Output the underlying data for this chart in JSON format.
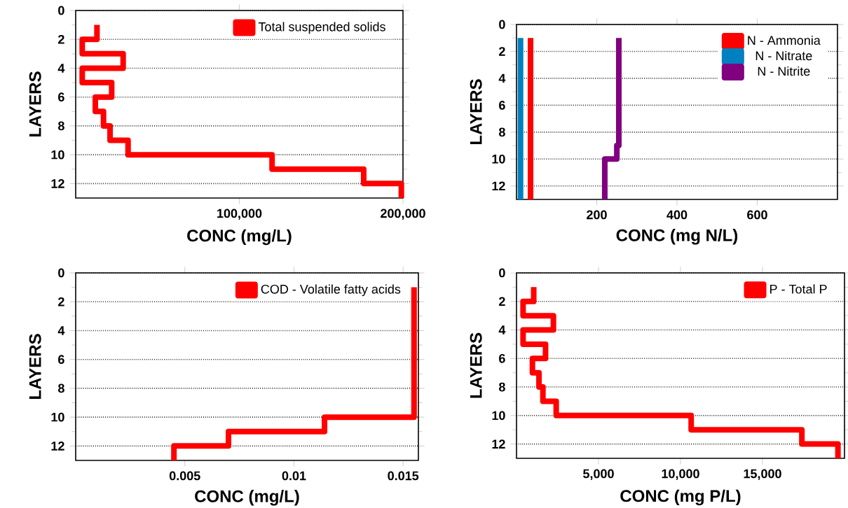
{
  "chart_data": [
    {
      "type": "line",
      "xlabel": "CONC (mg/L)",
      "ylabel": "LAYERS",
      "xlim": [
        0,
        200000
      ],
      "ylim": [
        13,
        0
      ],
      "xticks": [
        {
          "value": 100000,
          "label": "100,000"
        },
        {
          "value": 200000,
          "label": "200,000"
        }
      ],
      "yticks": [
        0,
        2,
        4,
        6,
        8,
        10,
        12
      ],
      "grid": "y",
      "legend": "top right",
      "marker": "none",
      "line_style": "solid",
      "series": [
        {
          "name": "Total suspended solids",
          "color": "#ff0000",
          "x": [
            13000,
            13000,
            4000,
            4000,
            29000,
            29000,
            4000,
            4000,
            22000,
            22000,
            12000,
            12000,
            17000,
            17000,
            21000,
            21000,
            32000,
            32000,
            120000,
            120000,
            176000,
            176000,
            199000,
            199000
          ],
          "values": [
            1,
            2,
            2,
            3,
            3,
            4,
            4,
            5,
            5,
            6,
            6,
            7,
            7,
            8,
            8,
            9,
            9,
            10,
            10,
            11,
            11,
            12,
            12,
            13
          ]
        }
      ]
    },
    {
      "type": "line",
      "xlabel": "CONC (mg N/L)",
      "ylabel": "LAYERS",
      "xlim": [
        0,
        800
      ],
      "ylim": [
        13,
        0
      ],
      "xticks": [
        200,
        400,
        600
      ],
      "yticks": [
        0,
        2,
        4,
        6,
        8,
        10,
        12
      ],
      "grid": "y",
      "legend": "top right",
      "marker": "none",
      "line_style": "solid",
      "series": [
        {
          "name": "N - Ammonia",
          "color": "#ff0000",
          "x": [
            35,
            35
          ],
          "values": [
            1,
            13
          ]
        },
        {
          "name": "N - Nitrate",
          "color": "#0080c0",
          "x": [
            10,
            10
          ],
          "values": [
            1,
            13
          ]
        },
        {
          "name": "N - Nitrite",
          "color": "#800080",
          "x": [
            255,
            255,
            250,
            250,
            220,
            220
          ],
          "values": [
            1,
            9,
            9,
            10,
            10,
            13
          ]
        }
      ]
    },
    {
      "type": "line",
      "xlabel": "CONC (mg/L)",
      "ylabel": "LAYERS",
      "xlim": [
        0,
        0.0157
      ],
      "ylim": [
        13,
        0
      ],
      "xticks": [
        0.005,
        0.01,
        0.015
      ],
      "yticks": [
        0,
        2,
        4,
        6,
        8,
        10,
        12
      ],
      "grid": "y",
      "legend": "top right",
      "marker": "none",
      "line_style": "solid",
      "series": [
        {
          "name": "COD - Volatile fatty acids",
          "color": "#ff0000",
          "x": [
            0.0155,
            0.0155,
            0.0114,
            0.0114,
            0.007,
            0.007,
            0.0045,
            0.0045
          ],
          "values": [
            1,
            10,
            10,
            11,
            11,
            12,
            12,
            13
          ]
        }
      ]
    },
    {
      "type": "line",
      "xlabel": "CONC (mg P/L)",
      "ylabel": "LAYERS",
      "xlim": [
        0,
        20000
      ],
      "ylim": [
        13,
        0
      ],
      "xticks": [
        {
          "value": 5000,
          "label": "5,000"
        },
        {
          "value": 10000,
          "label": "10,000"
        },
        {
          "value": 15000,
          "label": "15,000"
        }
      ],
      "yticks": [
        0,
        2,
        4,
        6,
        8,
        10,
        12
      ],
      "grid": "y",
      "legend": "top right",
      "marker": "none",
      "line_style": "solid",
      "series": [
        {
          "name": "P - Total P",
          "color": "#ff0000",
          "x": [
            1050,
            1050,
            400,
            400,
            2250,
            2250,
            400,
            400,
            1770,
            1770,
            970,
            970,
            1370,
            1370,
            1610,
            1610,
            2420,
            2420,
            10650,
            10650,
            17400,
            17400,
            19600,
            19600
          ],
          "values": [
            1,
            2,
            2,
            3,
            3,
            4,
            4,
            5,
            5,
            6,
            6,
            7,
            7,
            8,
            8,
            9,
            9,
            10,
            10,
            11,
            11,
            12,
            12,
            13
          ]
        }
      ]
    }
  ]
}
